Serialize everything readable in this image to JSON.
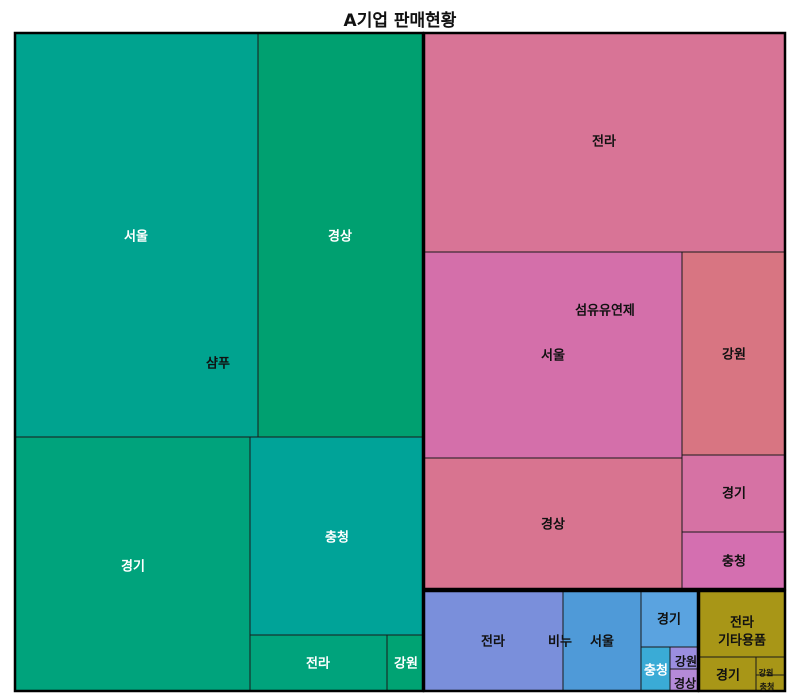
{
  "title": "A기업 판매현황",
  "chart_data": {
    "type": "treemap",
    "title": "A기업 판매현황",
    "groups": [
      {
        "name": "샴푸",
        "color": "#00a38a",
        "items": [
          {
            "name": "서울",
            "value": 24,
            "color": "#00a38f"
          },
          {
            "name": "경상",
            "value": 16,
            "color": "#00a070"
          },
          {
            "name": "경기",
            "value": 15,
            "color": "#00a37c"
          },
          {
            "name": "충청",
            "value": 9,
            "color": "#00a398"
          },
          {
            "name": "전라",
            "value": 3.8,
            "color": "#00a37c"
          },
          {
            "name": "강원",
            "value": 1.5,
            "color": "#00a373"
          }
        ]
      },
      {
        "name": "섬유유연제",
        "color": "#d471a6",
        "items": [
          {
            "name": "전라",
            "value": 14.7,
            "color": "#d87496"
          },
          {
            "name": "서울",
            "value": 17.8,
            "color": "#d46faa"
          },
          {
            "name": "경상",
            "value": 11.3,
            "color": "#d87490"
          },
          {
            "name": "강원",
            "value": 6.9,
            "color": "#d87582"
          },
          {
            "name": "경기",
            "value": 2.6,
            "color": "#d672a4"
          },
          {
            "name": "충청",
            "value": 1.9,
            "color": "#d46fb0"
          }
        ]
      },
      {
        "name": "비누",
        "color": "#6e8fd8",
        "items": [
          {
            "name": "전라",
            "value": 4.7,
            "color": "#7a8fdb"
          },
          {
            "name": "서울",
            "value": 2.6,
            "color": "#4f9ad8"
          },
          {
            "name": "경기",
            "value": 0.7,
            "color": "#5aa3e0"
          },
          {
            "name": "충청",
            "value": 0.3,
            "color": "#3aabd6"
          },
          {
            "name": "강원",
            "value": 0.15,
            "color": "#9b8ee0"
          },
          {
            "name": "경상",
            "value": 0.14,
            "color": "#b58ad8"
          }
        ]
      },
      {
        "name": "기타용품",
        "color": "#a89617",
        "items": [
          {
            "name": "전라",
            "value": 1.8,
            "color": "#a89617"
          },
          {
            "name": "경기",
            "value": 1.2,
            "color": "#a89617"
          },
          {
            "name": "강원",
            "value": 0.15,
            "color": "#a89617"
          },
          {
            "name": "충청",
            "value": 0.1,
            "color": "#a89617"
          }
        ]
      }
    ]
  }
}
